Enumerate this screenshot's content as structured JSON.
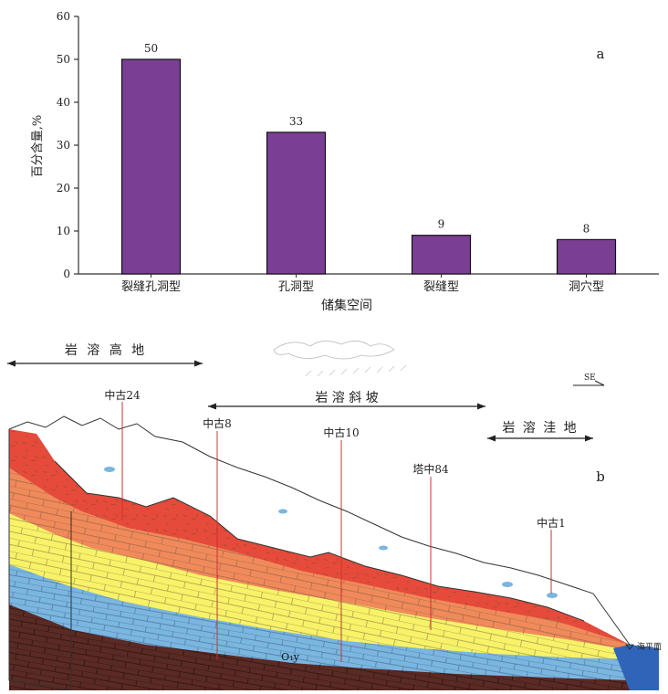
{
  "chart_data": {
    "type": "bar",
    "panel_label": "a",
    "categories": [
      "裂缝孔洞型",
      "孔洞型",
      "裂缝型",
      "洞穴型"
    ],
    "values": [
      50,
      33,
      9,
      8
    ],
    "xlabel": "储集空间",
    "ylabel": "百分含量,%",
    "ylim": [
      0,
      60
    ],
    "yticks": [
      0,
      10,
      20,
      30,
      40,
      50,
      60
    ],
    "bar_color": "#7a3f94",
    "grid": false,
    "legend": "none"
  },
  "diagram": {
    "panel_label": "b",
    "direction": "SE",
    "zones": [
      {
        "id": "karst_highland",
        "label": "岩 溶 高 地"
      },
      {
        "id": "karst_slope",
        "label": "岩    溶    斜    坡"
      },
      {
        "id": "karst_depression",
        "label": "岩 溶 洼 地"
      }
    ],
    "wells": [
      "中古24",
      "中古8",
      "中古10",
      "塔中84",
      "中古1"
    ],
    "sea_level_label": "海平面",
    "stratum_label": "O₁y",
    "colors": {
      "red_layer": "#e64a3a",
      "orange_layer": "#f08a5a",
      "yellow_layer": "#f7f268",
      "blue_layer": "#7ab6e0",
      "brown_layer": "#5a2a24",
      "well_line": "#d03030"
    }
  }
}
